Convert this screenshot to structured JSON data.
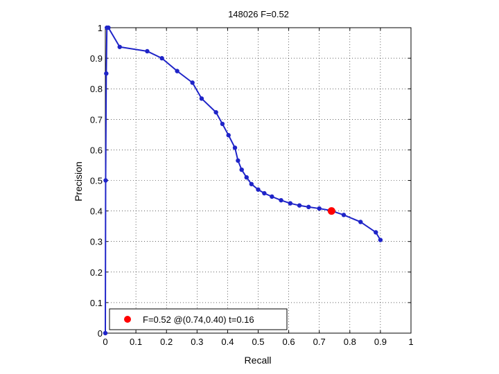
{
  "chart_data": {
    "type": "line",
    "title": "148026 F=0.52",
    "xlabel": "Recall",
    "ylabel": "Precision",
    "xlim": [
      0,
      1
    ],
    "ylim": [
      0,
      1
    ],
    "grid": true,
    "x_ticks": [
      0,
      0.1,
      0.2,
      0.3,
      0.4,
      0.5,
      0.6,
      0.7,
      0.8,
      0.9,
      1
    ],
    "y_ticks": [
      0,
      0.1,
      0.2,
      0.3,
      0.4,
      0.5,
      0.6,
      0.7,
      0.8,
      0.9,
      1
    ],
    "x_tick_labels": [
      "0",
      "0.1",
      "0.2",
      "0.3",
      "0.4",
      "0.5",
      "0.6",
      "0.7",
      "0.8",
      "0.9",
      "1"
    ],
    "y_tick_labels": [
      "0",
      "0.1",
      "0.2",
      "0.3",
      "0.4",
      "0.5",
      "0.6",
      "0.7",
      "0.8",
      "0.9",
      "1"
    ],
    "series": [
      {
        "color": "#1f24c8",
        "points": [
          [
            0.9,
            0.305
          ],
          [
            0.885,
            0.33
          ],
          [
            0.835,
            0.364
          ],
          [
            0.78,
            0.387
          ],
          [
            0.735,
            0.402
          ],
          [
            0.7,
            0.408
          ],
          [
            0.665,
            0.413
          ],
          [
            0.635,
            0.418
          ],
          [
            0.605,
            0.425
          ],
          [
            0.575,
            0.435
          ],
          [
            0.545,
            0.447
          ],
          [
            0.52,
            0.458
          ],
          [
            0.5,
            0.47
          ],
          [
            0.478,
            0.488
          ],
          [
            0.462,
            0.51
          ],
          [
            0.446,
            0.535
          ],
          [
            0.434,
            0.565
          ],
          [
            0.424,
            0.607
          ],
          [
            0.403,
            0.648
          ],
          [
            0.383,
            0.685
          ],
          [
            0.362,
            0.723
          ],
          [
            0.315,
            0.768
          ],
          [
            0.285,
            0.82
          ],
          [
            0.235,
            0.858
          ],
          [
            0.185,
            0.9
          ],
          [
            0.137,
            0.923
          ],
          [
            0.047,
            0.937
          ],
          [
            0.01,
            1.0
          ],
          [
            0.005,
            1.0
          ],
          [
            0.003,
            0.85
          ],
          [
            0.001,
            0.5
          ],
          [
            0.0,
            0.0
          ]
        ]
      }
    ],
    "highlight": {
      "recall": 0.74,
      "precision": 0.4,
      "color": "#ff0000"
    },
    "legend": {
      "position": "bottom-left",
      "text": "F=0.52 @(0.74,0.40) t=0.16"
    }
  }
}
